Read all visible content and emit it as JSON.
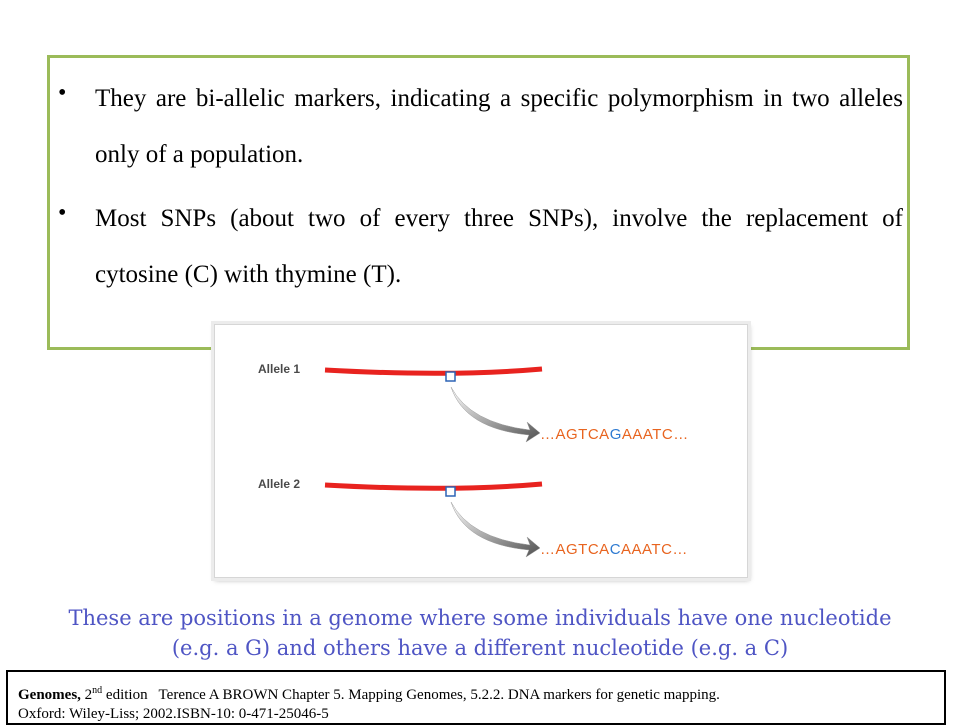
{
  "bullets": [
    "They are bi-allelic markers, indicating a specific polymorphism in two alleles only of a population.",
    "Most SNPs (about two of every three SNPs), involve the replacement of cytosine (C) with thymine (T)."
  ],
  "figure": {
    "alleles": [
      {
        "label": "Allele 1",
        "seq_before": "…AGTCA",
        "seq_variant": "G",
        "seq_after": "AAATC…"
      },
      {
        "label": "Allele 2",
        "seq_before": "…AGTCA",
        "seq_variant": "C",
        "seq_after": "AAATC…"
      }
    ],
    "colors": {
      "chromosome": "#e8231f",
      "snp_marker": "#2d64b5",
      "sequence": "#e8641f",
      "variant": "#2d7ad1",
      "arrow": "#5a5a5a"
    }
  },
  "caption": {
    "line1": "These are positions in a genome where some individuals have one nucleotide",
    "line2": "(e.g. a G) and others have a different nucleotide (e.g. a C)"
  },
  "reference": {
    "title": "Genomes,",
    "edition_num": "2",
    "edition_sup": "nd",
    "edition_text": " edition   Terence A BROWN Chapter 5. Mapping Genomes, 5.2.2. DNA markers for genetic mapping.",
    "line2": "Oxford: Wiley-Liss; 2002.ISBN-10: 0-471-25046-5"
  }
}
